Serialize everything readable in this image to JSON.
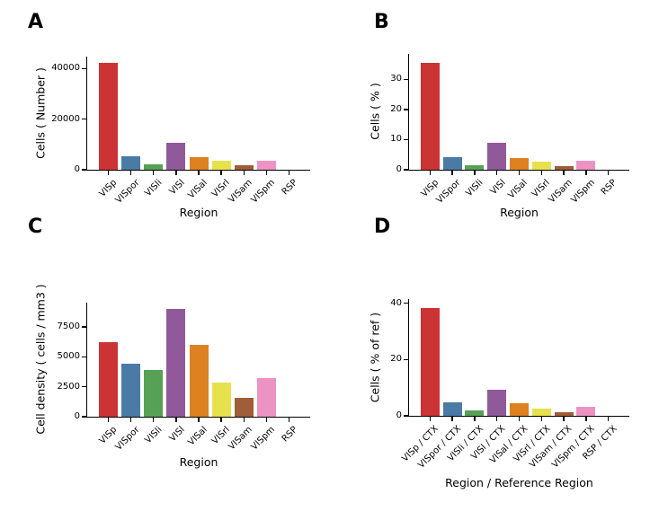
{
  "figure": {
    "background_color": "#ffffff",
    "text_color": "#000000",
    "axis_color": "#000000"
  },
  "palette": [
    "#cb3335",
    "#4a7ba7",
    "#56a156",
    "#90599a",
    "#dd8121",
    "#e6e14d",
    "#a05d38",
    "#ec93c3",
    "#999999"
  ],
  "chart_data": [
    {
      "type": "bar",
      "panel_label": "A",
      "xlabel": "Region",
      "ylabel": "Cells ( Number )",
      "categories": [
        "VISp",
        "VISpor",
        "VISli",
        "VISl",
        "VISal",
        "VISrl",
        "VISam",
        "VISpm",
        "RSP"
      ],
      "values": [
        42300,
        5300,
        2100,
        10700,
        5000,
        3400,
        1800,
        3500,
        0
      ],
      "yticks": [
        0,
        20000,
        40000
      ],
      "ylim": [
        0,
        44700
      ],
      "grid": false,
      "legend": null
    },
    {
      "type": "bar",
      "panel_label": "B",
      "xlabel": "Region",
      "ylabel": "Cells ( % )",
      "categories": [
        "VISp",
        "VISpor",
        "VISli",
        "VISl",
        "VISal",
        "VISrl",
        "VISam",
        "VISpm",
        "RSP"
      ],
      "values": [
        35.4,
        4.1,
        1.6,
        9.0,
        4.0,
        2.8,
        1.3,
        2.9,
        0
      ],
      "yticks": [
        0,
        10,
        20,
        30
      ],
      "ylim": [
        0,
        38.4
      ],
      "grid": false,
      "legend": null
    },
    {
      "type": "bar",
      "panel_label": "C",
      "xlabel": "Region",
      "ylabel": "Cell density ( cells / mm3 )",
      "categories": [
        "VISp",
        "VISpor",
        "VISli",
        "VISl",
        "VISal",
        "VISrl",
        "VISam",
        "VISpm",
        "RSP"
      ],
      "values": [
        6200,
        4450,
        3880,
        9000,
        6040,
        2850,
        1580,
        3200,
        0
      ],
      "yticks": [
        0,
        2500,
        5000,
        7500
      ],
      "ylim": [
        0,
        9530
      ],
      "grid": false,
      "legend": null
    },
    {
      "type": "bar",
      "panel_label": "D",
      "xlabel": "Region / Reference Region",
      "ylabel": "Cells ( % of ref )",
      "categories": [
        "VISp / CTX",
        "VISpor / CTX",
        "VISli / CTX",
        "VISl / CTX",
        "VISal / CTX",
        "VISrl / CTX",
        "VISam / CTX",
        "VISpm / CTX",
        "RSP / CTX"
      ],
      "values": [
        38.3,
        4.8,
        1.8,
        9.4,
        4.4,
        2.6,
        1.2,
        3.1,
        0
      ],
      "yticks": [
        0,
        20,
        40
      ],
      "ylim": [
        0,
        41.5
      ],
      "grid": false,
      "legend": null
    }
  ]
}
